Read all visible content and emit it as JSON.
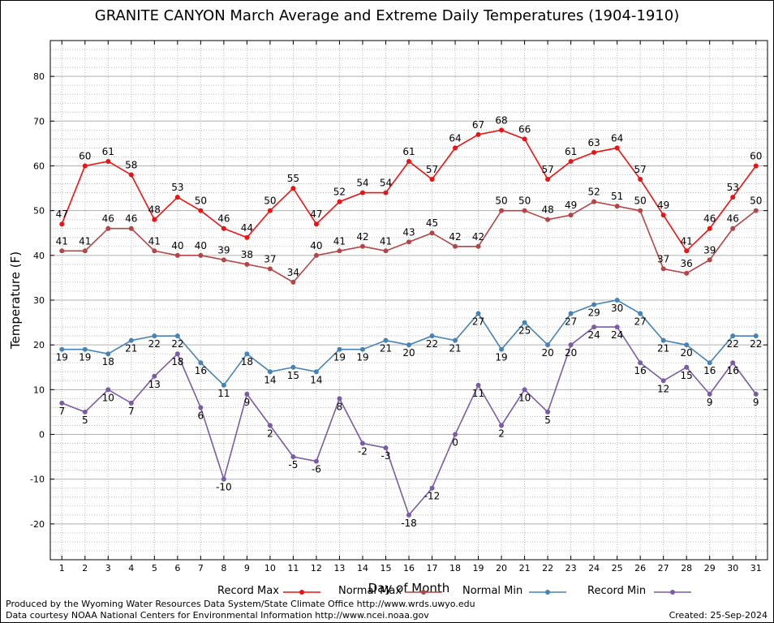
{
  "chart_data": {
    "type": "line",
    "title": "GRANITE CANYON March Average and Extreme Daily Temperatures (1904-1910)",
    "xlabel": "Day of Month",
    "ylabel": "Temperature (F)",
    "x": [
      1,
      2,
      3,
      4,
      5,
      6,
      7,
      8,
      9,
      10,
      11,
      12,
      13,
      14,
      15,
      16,
      17,
      18,
      19,
      20,
      21,
      22,
      23,
      24,
      25,
      26,
      27,
      28,
      29,
      30,
      31
    ],
    "xlim": [
      0.5,
      31.5
    ],
    "ylim": [
      -28,
      88
    ],
    "yticks": [
      -20,
      -10,
      0,
      10,
      20,
      30,
      40,
      50,
      60,
      70,
      80
    ],
    "grid": true,
    "legend_position": "bottom",
    "series": [
      {
        "name": "Record Max",
        "color": "#ee1111",
        "values": [
          47,
          60,
          61,
          58,
          48,
          53,
          50,
          46,
          44,
          50,
          55,
          47,
          52,
          54,
          54,
          61,
          57,
          64,
          67,
          68,
          66,
          57,
          61,
          63,
          64,
          57,
          49,
          41,
          46,
          53,
          60
        ]
      },
      {
        "name": "Normal Max",
        "color": "#b54444",
        "values": [
          41,
          41,
          46,
          46,
          41,
          40,
          40,
          39,
          38,
          37,
          34,
          40,
          41,
          42,
          41,
          43,
          45,
          42,
          42,
          50,
          50,
          48,
          49,
          52,
          51,
          50,
          37,
          36,
          39,
          46,
          50
        ]
      },
      {
        "name": "Normal Min",
        "color": "#4682b4",
        "values": [
          19,
          19,
          18,
          21,
          22,
          22,
          16,
          11,
          18,
          14,
          15,
          14,
          19,
          19,
          21,
          20,
          22,
          21,
          27,
          19,
          25,
          20,
          27,
          29,
          30,
          27,
          21,
          20,
          16,
          22,
          22
        ]
      },
      {
        "name": "Record Min",
        "color": "#7b5aa6",
        "values": [
          7,
          5,
          10,
          7,
          13,
          18,
          6,
          -10,
          9,
          2,
          -5,
          -6,
          8,
          -2,
          -3,
          -18,
          -12,
          0,
          11,
          2,
          10,
          5,
          20,
          24,
          24,
          16,
          12,
          15,
          9,
          16,
          9
        ]
      }
    ]
  },
  "footer": {
    "credit": "Produced by the Wyoming Water Resources Data System/State Climate Office http://www.wrds.uwyo.edu",
    "source": "Data courtesy NOAA National Centers for Environmental Information http://www.ncei.noaa.gov",
    "created": "Created: 25-Sep-2024"
  }
}
